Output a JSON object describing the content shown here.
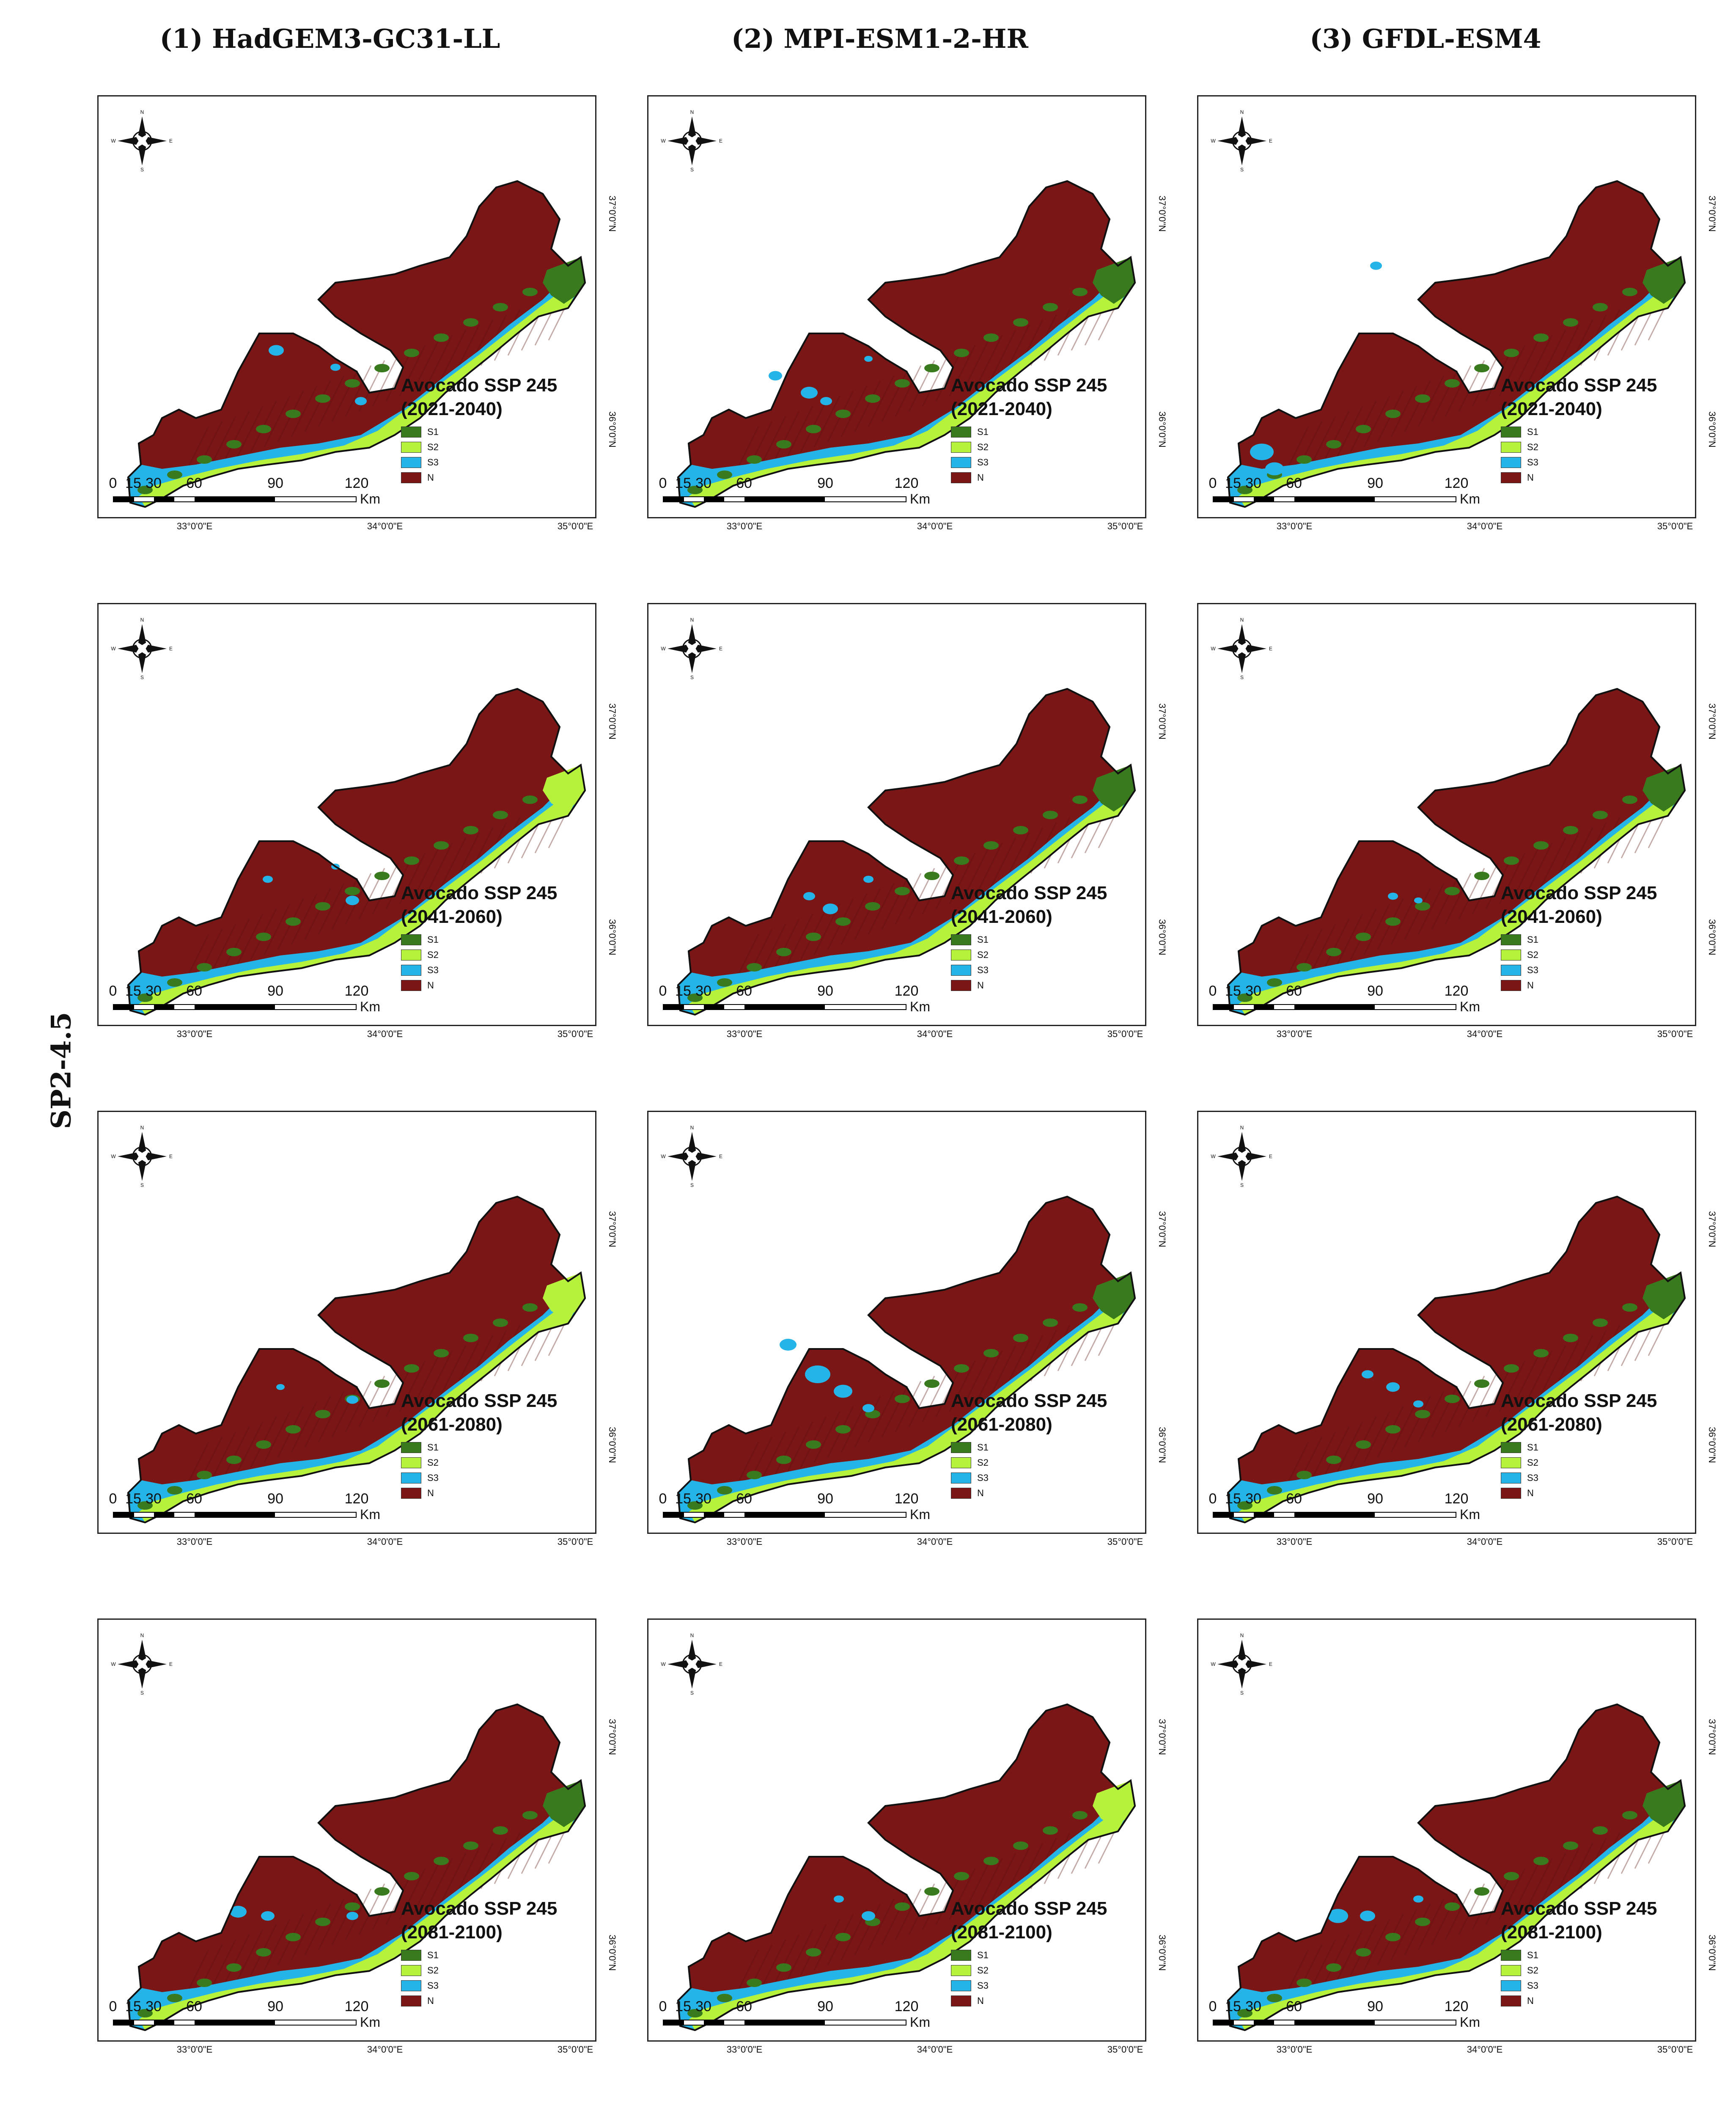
{
  "column_titles": [
    "(1) HadGEM3-GC31-LL",
    "(2) MPI-ESM1-2-HR",
    "(3) GFDL-ESM4"
  ],
  "row_label": "SP2-4.5",
  "map_title": "Avocado SSP 245",
  "periods": [
    "(2021-2040)",
    "(2041-2060)",
    "(2061-2080)",
    "(2081-2100)"
  ],
  "legend": [
    {
      "label": "S1",
      "color": "#3a7a1e"
    },
    {
      "label": "S2",
      "color": "#b6f23c"
    },
    {
      "label": "S3",
      "color": "#24b4e8"
    },
    {
      "label": "N",
      "color": "#7a1616"
    }
  ],
  "scale_bar": {
    "ticks": [
      "0",
      "15",
      "30",
      "60",
      "90",
      "120"
    ],
    "unit": "Km"
  },
  "latitudes": [
    "37°0'0\"N",
    "36°0'0\"N"
  ],
  "longitudes": [
    "33°0'0\"E",
    "34°0'0\"E",
    "35°0'0\"E"
  ],
  "compass": {
    "N": "N",
    "E": "E",
    "S": "S",
    "W": "W"
  },
  "colors": {
    "land": "#7a1616",
    "land_shade": "#5c0f0f"
  }
}
